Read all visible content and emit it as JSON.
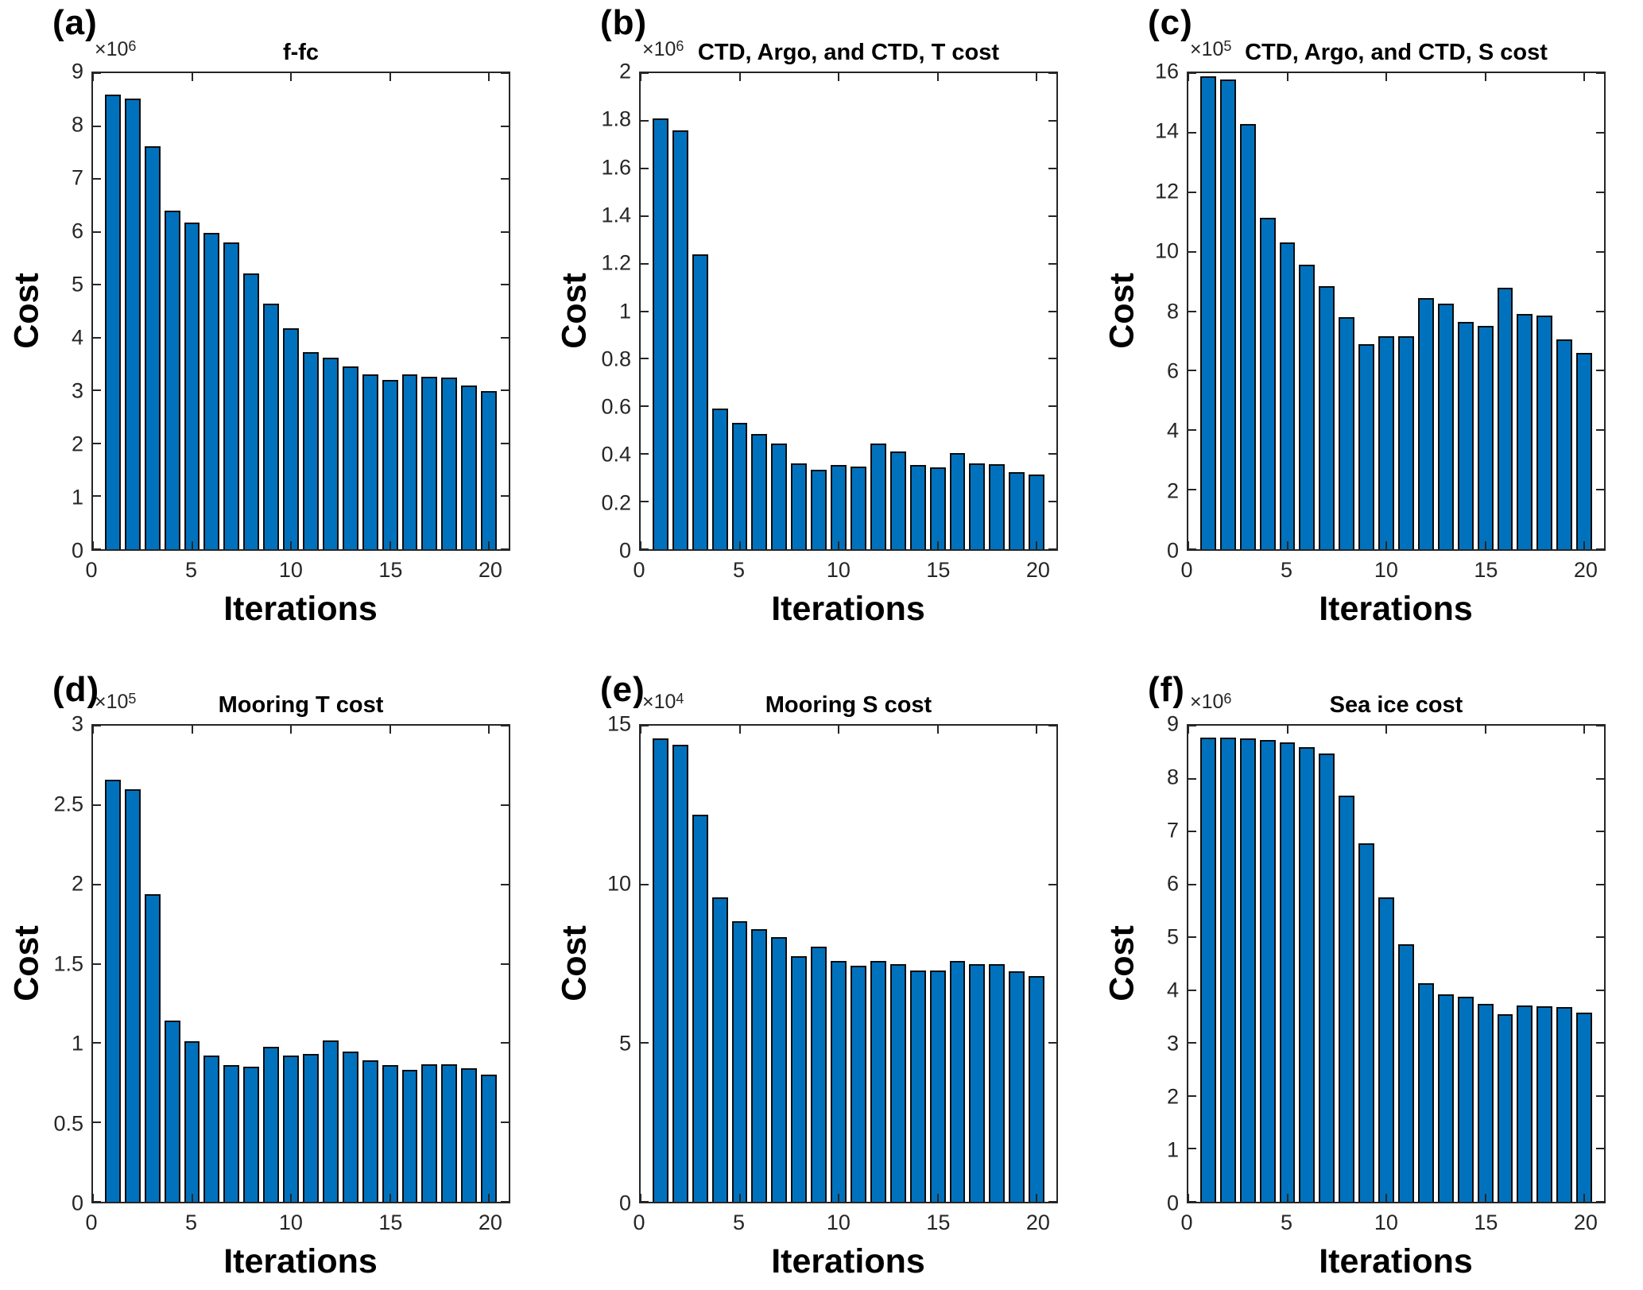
{
  "figure": {
    "xlabel": "Iterations",
    "ylabel": "Cost",
    "bar_color": "#0072BD",
    "bar_edge_color": "#0d0d0d",
    "axis_color": "#262626",
    "bar_width": 0.8,
    "iterations": [
      1,
      2,
      3,
      4,
      5,
      6,
      7,
      8,
      9,
      10,
      11,
      12,
      13,
      14,
      15,
      16,
      17,
      18,
      19,
      20
    ]
  },
  "chart_data": [
    {
      "type": "bar",
      "id": "a",
      "panel_label": "(a)",
      "title": "f-fc",
      "exp_base": "×10",
      "exp_power": "6",
      "unit_scale": 1000000,
      "xlabel": "Iterations",
      "ylabel": "Cost",
      "xlim": [
        0,
        21
      ],
      "xticks": [
        0,
        5,
        10,
        15,
        20
      ],
      "xtick_labels": [
        "0",
        "5",
        "10",
        "15",
        "20"
      ],
      "ymax": 9,
      "yticks": [
        0,
        1,
        2,
        3,
        4,
        5,
        6,
        7,
        8,
        9
      ],
      "ytick_labels": [
        "0",
        "1",
        "2",
        "3",
        "4",
        "5",
        "6",
        "7",
        "8",
        "9"
      ],
      "values": [
        8.6,
        8.52,
        7.62,
        6.4,
        6.18,
        5.98,
        5.8,
        5.21,
        4.65,
        4.18,
        3.73,
        3.62,
        3.45,
        3.3,
        3.2,
        3.3,
        3.26,
        3.24,
        3.1,
        2.99
      ]
    },
    {
      "type": "bar",
      "id": "b",
      "panel_label": "(b)",
      "title": "CTD, Argo, and CTD, T cost",
      "exp_base": "×10",
      "exp_power": "6",
      "unit_scale": 1000000,
      "xlabel": "Iterations",
      "ylabel": "Cost",
      "xlim": [
        0,
        21
      ],
      "xticks": [
        0,
        5,
        10,
        15,
        20
      ],
      "xtick_labels": [
        "0",
        "5",
        "10",
        "15",
        "20"
      ],
      "ymax": 2,
      "yticks": [
        0,
        0.2,
        0.4,
        0.6,
        0.8,
        1,
        1.2,
        1.4,
        1.6,
        1.8,
        2
      ],
      "ytick_labels": [
        "0",
        "0.2",
        "0.4",
        "0.6",
        "0.8",
        "1",
        "1.2",
        "1.4",
        "1.6",
        "1.8",
        "2"
      ],
      "values": [
        1.81,
        1.76,
        1.24,
        0.59,
        0.53,
        0.485,
        0.445,
        0.36,
        0.335,
        0.355,
        0.348,
        0.445,
        0.41,
        0.355,
        0.343,
        0.403,
        0.362,
        0.358,
        0.325,
        0.315
      ]
    },
    {
      "type": "bar",
      "id": "c",
      "panel_label": "(c)",
      "title": "CTD, Argo, and CTD, S cost",
      "exp_base": "×10",
      "exp_power": "5",
      "unit_scale": 100000,
      "xlabel": "Iterations",
      "ylabel": "Cost",
      "xlim": [
        0,
        21
      ],
      "xticks": [
        0,
        5,
        10,
        15,
        20
      ],
      "xtick_labels": [
        "0",
        "5",
        "10",
        "15",
        "20"
      ],
      "ymax": 16,
      "yticks": [
        0,
        2,
        4,
        6,
        8,
        10,
        12,
        14,
        16
      ],
      "ytick_labels": [
        "0",
        "2",
        "4",
        "6",
        "8",
        "10",
        "12",
        "14",
        "16"
      ],
      "values": [
        15.9,
        15.8,
        14.3,
        11.15,
        10.3,
        9.55,
        8.85,
        7.8,
        6.9,
        7.15,
        7.15,
        8.45,
        8.25,
        7.65,
        7.5,
        8.8,
        7.9,
        7.85,
        7.05,
        6.6
      ]
    },
    {
      "type": "bar",
      "id": "d",
      "panel_label": "(d)",
      "title": "Mooring T cost",
      "exp_base": "×10",
      "exp_power": "5",
      "unit_scale": 100000,
      "xlabel": "Iterations",
      "ylabel": "Cost",
      "xlim": [
        0,
        21
      ],
      "xticks": [
        0,
        5,
        10,
        15,
        20
      ],
      "xtick_labels": [
        "0",
        "5",
        "10",
        "15",
        "20"
      ],
      "ymax": 3,
      "yticks": [
        0,
        0.5,
        1,
        1.5,
        2,
        2.5,
        3
      ],
      "ytick_labels": [
        "0",
        "0.5",
        "1",
        "1.5",
        "2",
        "2.5",
        "3"
      ],
      "values": [
        2.66,
        2.6,
        1.94,
        1.14,
        1.01,
        0.92,
        0.86,
        0.85,
        0.975,
        0.92,
        0.93,
        1.015,
        0.945,
        0.89,
        0.86,
        0.83,
        0.865,
        0.865,
        0.84,
        0.8
      ]
    },
    {
      "type": "bar",
      "id": "e",
      "panel_label": "(e)",
      "title": "Mooring S cost",
      "exp_base": "×10",
      "exp_power": "4",
      "unit_scale": 10000,
      "xlabel": "Iterations",
      "ylabel": "Cost",
      "xlim": [
        0,
        21
      ],
      "xticks": [
        0,
        5,
        10,
        15,
        20
      ],
      "xtick_labels": [
        "0",
        "5",
        "10",
        "15",
        "20"
      ],
      "ymax": 15,
      "yticks": [
        0,
        5,
        10,
        15
      ],
      "ytick_labels": [
        "0",
        "5",
        "10",
        "15"
      ],
      "values": [
        14.6,
        14.4,
        12.2,
        9.6,
        8.85,
        8.6,
        8.35,
        7.75,
        8.05,
        7.6,
        7.45,
        7.6,
        7.5,
        7.3,
        7.3,
        7.6,
        7.5,
        7.5,
        7.25,
        7.1
      ]
    },
    {
      "type": "bar",
      "id": "f",
      "panel_label": "(f)",
      "title": "Sea ice cost",
      "exp_base": "×10",
      "exp_power": "6",
      "unit_scale": 1000000,
      "xlabel": "Iterations",
      "ylabel": "Cost",
      "xlim": [
        0,
        21
      ],
      "xticks": [
        0,
        5,
        10,
        15,
        20
      ],
      "xtick_labels": [
        "0",
        "5",
        "10",
        "15",
        "20"
      ],
      "ymax": 9,
      "yticks": [
        0,
        1,
        2,
        3,
        4,
        5,
        6,
        7,
        8,
        9
      ],
      "ytick_labels": [
        "0",
        "1",
        "2",
        "3",
        "4",
        "5",
        "6",
        "7",
        "8",
        "9"
      ],
      "values": [
        8.78,
        8.78,
        8.76,
        8.73,
        8.68,
        8.6,
        8.48,
        7.68,
        6.77,
        5.75,
        4.87,
        4.13,
        3.92,
        3.87,
        3.74,
        3.54,
        3.71,
        3.7,
        3.68,
        3.58
      ]
    }
  ]
}
